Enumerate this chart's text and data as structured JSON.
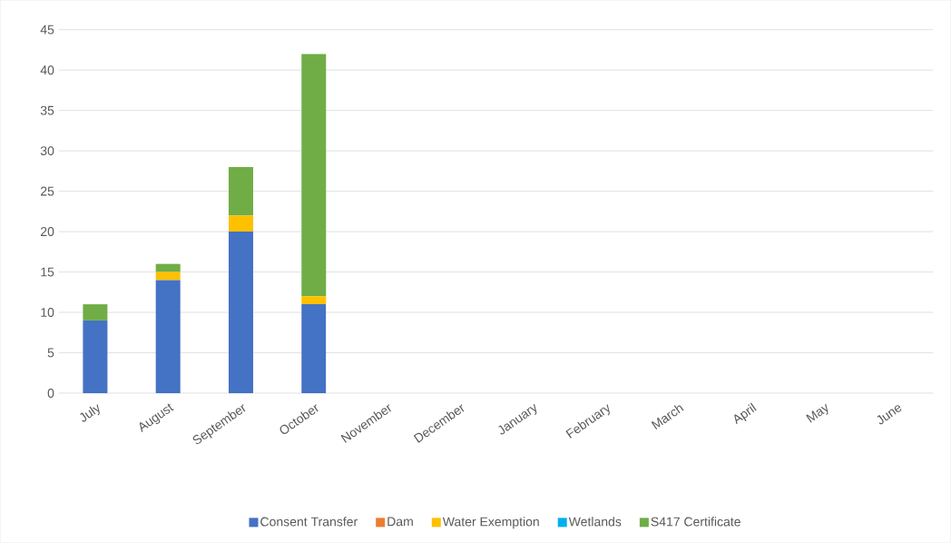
{
  "chart_data": {
    "type": "bar",
    "stacked": true,
    "categories": [
      "July",
      "August",
      "September",
      "October",
      "November",
      "December",
      "January",
      "February",
      "March",
      "April",
      "May",
      "June"
    ],
    "series": [
      {
        "name": "Consent Transfer",
        "color": "#4472c4",
        "values": [
          9,
          14,
          20,
          11,
          null,
          null,
          null,
          null,
          null,
          null,
          null,
          null
        ]
      },
      {
        "name": "Dam",
        "color": "#ed7d31",
        "values": [
          0,
          0,
          0,
          0,
          null,
          null,
          null,
          null,
          null,
          null,
          null,
          null
        ]
      },
      {
        "name": "Water Exemption",
        "color": "#ffc000",
        "values": [
          0,
          1,
          2,
          1,
          null,
          null,
          null,
          null,
          null,
          null,
          null,
          null
        ]
      },
      {
        "name": "Wetlands",
        "color": "#00b0f0",
        "values": [
          0,
          0,
          0,
          0,
          null,
          null,
          null,
          null,
          null,
          null,
          null,
          null
        ]
      },
      {
        "name": "S417 Certificate",
        "color": "#70ad47",
        "values": [
          2,
          1,
          6,
          30,
          null,
          null,
          null,
          null,
          null,
          null,
          null,
          null
        ]
      }
    ],
    "ylim": [
      0,
      45
    ],
    "yticks": [
      0,
      5,
      10,
      15,
      20,
      25,
      30,
      35,
      40,
      45
    ],
    "grid": "y",
    "legend": "bottom"
  }
}
